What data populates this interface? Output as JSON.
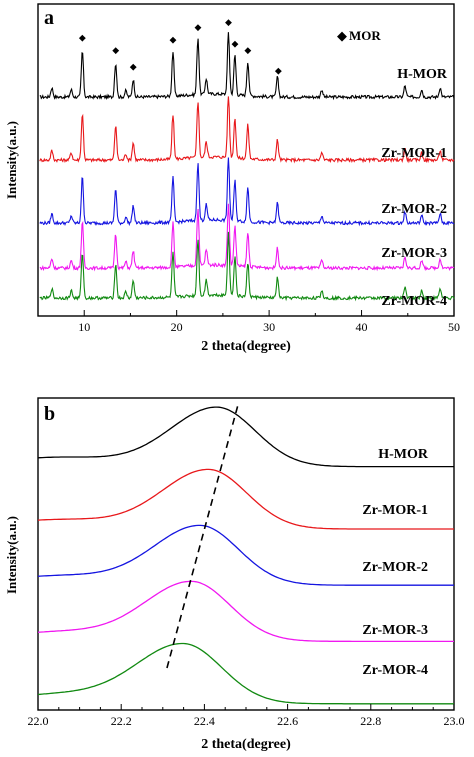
{
  "chart_data": [
    {
      "type": "line",
      "panel": "a",
      "xlabel": "2 theta(degree)",
      "ylabel": "Intensity(a.u.)",
      "xlim": [
        5,
        50
      ],
      "xticks": [
        10,
        20,
        30,
        40,
        50
      ],
      "legend": {
        "marker": "◆",
        "label": "MOR",
        "placement": "top-right"
      },
      "marker_positions": [
        9.8,
        13.4,
        15.3,
        19.6,
        22.3,
        25.6,
        26.3,
        27.7,
        31.0
      ],
      "series": [
        {
          "name": "H-MOR",
          "color": "#000000"
        },
        {
          "name": "Zr-MOR-1",
          "color": "#e8181b"
        },
        {
          "name": "Zr-MOR-2",
          "color": "#1515e0"
        },
        {
          "name": "Zr-MOR-3",
          "color": "#f018f0"
        },
        {
          "name": "Zr-MOR-4",
          "color": "#128a12"
        }
      ],
      "peaks": [
        {
          "x": 6.5,
          "h": 0.15
        },
        {
          "x": 8.6,
          "h": 0.12
        },
        {
          "x": 9.8,
          "h": 0.75
        },
        {
          "x": 13.4,
          "h": 0.55
        },
        {
          "x": 14.5,
          "h": 0.1
        },
        {
          "x": 15.3,
          "h": 0.28
        },
        {
          "x": 19.6,
          "h": 0.72
        },
        {
          "x": 22.3,
          "h": 0.92
        },
        {
          "x": 23.2,
          "h": 0.25
        },
        {
          "x": 25.6,
          "h": 1.0
        },
        {
          "x": 26.3,
          "h": 0.65
        },
        {
          "x": 27.7,
          "h": 0.55
        },
        {
          "x": 30.9,
          "h": 0.32
        },
        {
          "x": 35.7,
          "h": 0.12
        },
        {
          "x": 44.7,
          "h": 0.18
        },
        {
          "x": 46.5,
          "h": 0.12
        },
        {
          "x": 48.5,
          "h": 0.15
        }
      ]
    },
    {
      "type": "line",
      "panel": "b",
      "xlabel": "2 theta(degree)",
      "ylabel": "Intensity(a.u.)",
      "xlim": [
        22.0,
        23.0
      ],
      "xticks": [
        22.0,
        22.2,
        22.4,
        22.6,
        22.8,
        23.0
      ],
      "dashed_line": {
        "x": [
          22.31,
          22.48
        ]
      },
      "series": [
        {
          "name": "H-MOR",
          "color": "#000000",
          "peak_x": 22.43,
          "baseline": 0.78
        },
        {
          "name": "Zr-MOR-1",
          "color": "#e8181b",
          "peak_x": 22.41,
          "baseline": 0.58
        },
        {
          "name": "Zr-MOR-2",
          "color": "#1515e0",
          "peak_x": 22.39,
          "baseline": 0.4
        },
        {
          "name": "Zr-MOR-3",
          "color": "#f018f0",
          "peak_x": 22.37,
          "baseline": 0.22
        },
        {
          "name": "Zr-MOR-4",
          "color": "#128a12",
          "peak_x": 22.35,
          "baseline": 0.02
        }
      ]
    }
  ]
}
